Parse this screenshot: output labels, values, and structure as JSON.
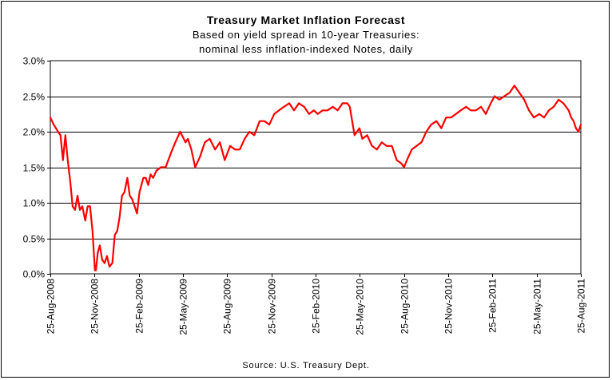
{
  "chart_data": {
    "type": "line",
    "title": "Treasury Market Inflation Forecast",
    "subtitle_lines": [
      "Based on yield spread in 10-year Treasuries:",
      "nominal less inflation-indexed Notes, daily"
    ],
    "source": "Source: U.S. Treasury Dept.",
    "ylim": [
      0.0,
      3.0
    ],
    "y_ticks": [
      "0.0%",
      "0.5%",
      "1.0%",
      "1.5%",
      "2.0%",
      "2.5%",
      "3.0%"
    ],
    "x_ticks": [
      "25-Aug-2008",
      "25-Nov-2008",
      "25-Feb-2009",
      "25-May-2009",
      "25-Aug-2009",
      "25-Nov-2009",
      "25-Feb-2010",
      "25-May-2010",
      "25-Aug-2010",
      "25-Nov-2010",
      "25-Feb-2011",
      "25-May-2011",
      "25-Aug-2011"
    ],
    "grid": "horizontal",
    "line_color": "#ff0000",
    "series": [
      {
        "x": [
          "2008-08-25",
          "2008-09-01",
          "2008-09-10",
          "2008-09-15",
          "2008-09-20",
          "2008-09-25",
          "2008-09-30",
          "2008-10-05",
          "2008-10-10",
          "2008-10-15",
          "2008-10-20",
          "2008-10-25",
          "2008-10-30",
          "2008-11-05",
          "2008-11-10",
          "2008-11-15",
          "2008-11-20",
          "2008-11-25",
          "2008-11-27",
          "2008-12-01",
          "2008-12-05",
          "2008-12-10",
          "2008-12-15",
          "2008-12-20",
          "2008-12-25",
          "2008-12-31",
          "2009-01-05",
          "2009-01-10",
          "2009-01-15",
          "2009-01-20",
          "2009-01-25",
          "2009-01-31",
          "2009-02-05",
          "2009-02-10",
          "2009-02-15",
          "2009-02-20",
          "2009-02-25",
          "2009-03-01",
          "2009-03-05",
          "2009-03-10",
          "2009-03-15",
          "2009-03-20",
          "2009-03-25",
          "2009-04-01",
          "2009-04-10",
          "2009-04-20",
          "2009-05-01",
          "2009-05-10",
          "2009-05-20",
          "2009-05-31",
          "2009-06-05",
          "2009-06-12",
          "2009-06-20",
          "2009-06-30",
          "2009-07-10",
          "2009-07-20",
          "2009-07-31",
          "2009-08-10",
          "2009-08-20",
          "2009-08-31",
          "2009-09-10",
          "2009-09-20",
          "2009-09-30",
          "2009-10-10",
          "2009-10-20",
          "2009-10-31",
          "2009-11-10",
          "2009-11-20",
          "2009-11-30",
          "2009-12-10",
          "2009-12-20",
          "2009-12-31",
          "2010-01-10",
          "2010-01-20",
          "2010-01-31",
          "2010-02-10",
          "2010-02-20",
          "2010-02-28",
          "2010-03-10",
          "2010-03-20",
          "2010-03-31",
          "2010-04-10",
          "2010-04-20",
          "2010-04-30",
          "2010-05-05",
          "2010-05-10",
          "2010-05-15",
          "2010-05-20",
          "2010-05-25",
          "2010-05-31",
          "2010-06-10",
          "2010-06-20",
          "2010-06-30",
          "2010-07-10",
          "2010-07-20",
          "2010-07-31",
          "2010-08-10",
          "2010-08-20",
          "2010-08-25",
          "2010-08-31",
          "2010-09-10",
          "2010-09-20",
          "2010-09-30",
          "2010-10-10",
          "2010-10-20",
          "2010-10-31",
          "2010-11-10",
          "2010-11-20",
          "2010-11-30",
          "2010-12-10",
          "2010-12-20",
          "2010-12-31",
          "2011-01-10",
          "2011-01-20",
          "2011-01-31",
          "2011-02-10",
          "2011-02-20",
          "2011-02-28",
          "2011-03-10",
          "2011-03-20",
          "2011-03-31",
          "2011-04-05",
          "2011-04-10",
          "2011-04-20",
          "2011-04-30",
          "2011-05-10",
          "2011-05-20",
          "2011-05-31",
          "2011-06-10",
          "2011-06-20",
          "2011-06-30",
          "2011-07-10",
          "2011-07-20",
          "2011-07-31",
          "2011-08-05",
          "2011-08-10",
          "2011-08-15",
          "2011-08-20",
          "2011-08-25"
        ],
        "values": [
          2.2,
          2.1,
          2.0,
          1.95,
          1.6,
          1.95,
          1.6,
          1.3,
          0.95,
          0.9,
          1.1,
          0.9,
          0.95,
          0.75,
          0.95,
          0.95,
          0.6,
          0.05,
          0.05,
          0.3,
          0.4,
          0.2,
          0.15,
          0.25,
          0.1,
          0.15,
          0.55,
          0.6,
          0.8,
          1.1,
          1.15,
          1.35,
          1.1,
          1.05,
          0.95,
          0.85,
          1.15,
          1.25,
          1.35,
          1.35,
          1.25,
          1.4,
          1.35,
          1.45,
          1.5,
          1.5,
          1.7,
          1.85,
          2.0,
          1.85,
          1.9,
          1.75,
          1.5,
          1.65,
          1.85,
          1.9,
          1.75,
          1.85,
          1.6,
          1.8,
          1.75,
          1.75,
          1.9,
          2.0,
          1.95,
          2.15,
          2.15,
          2.1,
          2.25,
          2.3,
          2.35,
          2.4,
          2.3,
          2.4,
          2.35,
          2.25,
          2.3,
          2.25,
          2.3,
          2.3,
          2.35,
          2.3,
          2.4,
          2.4,
          2.35,
          2.15,
          1.95,
          2.0,
          2.05,
          1.9,
          1.95,
          1.8,
          1.75,
          1.85,
          1.8,
          1.8,
          1.6,
          1.55,
          1.5,
          1.6,
          1.75,
          1.8,
          1.85,
          2.0,
          2.1,
          2.15,
          2.05,
          2.2,
          2.2,
          2.25,
          2.3,
          2.35,
          2.3,
          2.3,
          2.35,
          2.25,
          2.4,
          2.5,
          2.45,
          2.5,
          2.55,
          2.6,
          2.65,
          2.55,
          2.45,
          2.3,
          2.2,
          2.25,
          2.2,
          2.3,
          2.35,
          2.45,
          2.4,
          2.3,
          2.2,
          2.15,
          2.05,
          2.0,
          2.1
        ]
      }
    ]
  }
}
